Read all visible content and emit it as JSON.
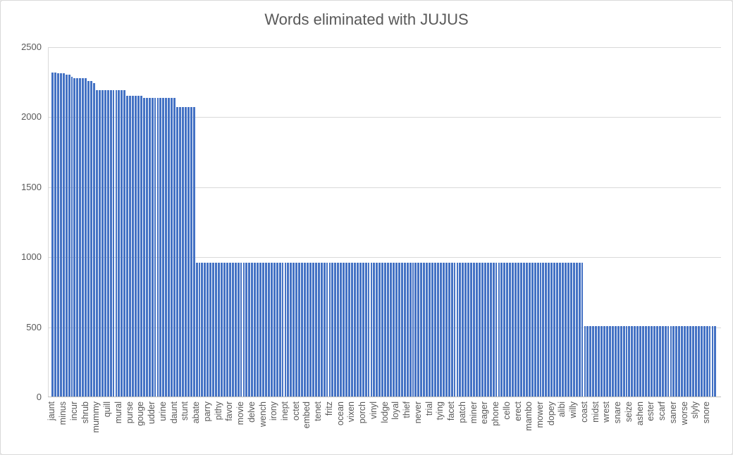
{
  "title": "Words eliminated with JUJUS",
  "colors": {
    "bar": "#4472c4",
    "title_text": "#595959",
    "axis_text": "#595959",
    "gridline": "#d9d9d9",
    "axis_line": "#bfbfbf",
    "background": "#ffffff",
    "border": "#d9d9d9"
  },
  "chart_data": {
    "type": "bar",
    "title": "Words eliminated with JUJUS",
    "xlabel": "",
    "ylabel": "",
    "ylim": [
      0,
      2500
    ],
    "yticks": [
      0,
      500,
      1000,
      1500,
      2000,
      2500
    ],
    "grid": true,
    "legend": false,
    "bar_count": 240,
    "label_every_n_bars": 4,
    "x_tick_labels": [
      "jaunt",
      "minus",
      "incur",
      "shrub",
      "mummy",
      "quill",
      "mural",
      "purse",
      "gouge",
      "udder",
      "urine",
      "daunt",
      "stunt",
      "abate",
      "parry",
      "pithy",
      "favor",
      "movie",
      "delve",
      "wench",
      "irony",
      "inept",
      "octet",
      "embed",
      "tenet",
      "fritz",
      "ocean",
      "vixen",
      "porch",
      "vinyl",
      "lodge",
      "loyal",
      "thief",
      "never",
      "trial",
      "tying",
      "facet",
      "patch",
      "miner",
      "eager",
      "phone",
      "cello",
      "erect",
      "mambo",
      "mower",
      "dopey",
      "alibi",
      "willy",
      "coast",
      "midst",
      "wrest",
      "snare",
      "seize",
      "ashen",
      "ester",
      "scarf",
      "saner",
      "worse",
      "slyly",
      "snore"
    ],
    "value_steps": [
      {
        "start_bar": 1,
        "end_bar": 2,
        "value": 2315
      },
      {
        "start_bar": 3,
        "end_bar": 5,
        "value": 2310
      },
      {
        "start_bar": 6,
        "end_bar": 7,
        "value": 2298
      },
      {
        "start_bar": 8,
        "end_bar": 8,
        "value": 2285
      },
      {
        "start_bar": 9,
        "end_bar": 13,
        "value": 2274
      },
      {
        "start_bar": 14,
        "end_bar": 15,
        "value": 2252
      },
      {
        "start_bar": 16,
        "end_bar": 16,
        "value": 2240
      },
      {
        "start_bar": 17,
        "end_bar": 27,
        "value": 2190
      },
      {
        "start_bar": 28,
        "end_bar": 33,
        "value": 2150
      },
      {
        "start_bar": 34,
        "end_bar": 45,
        "value": 2134
      },
      {
        "start_bar": 46,
        "end_bar": 52,
        "value": 2066
      },
      {
        "start_bar": 53,
        "end_bar": 192,
        "value": 955
      },
      {
        "start_bar": 193,
        "end_bar": 240,
        "value": 505
      }
    ]
  },
  "layout_note": ""
}
